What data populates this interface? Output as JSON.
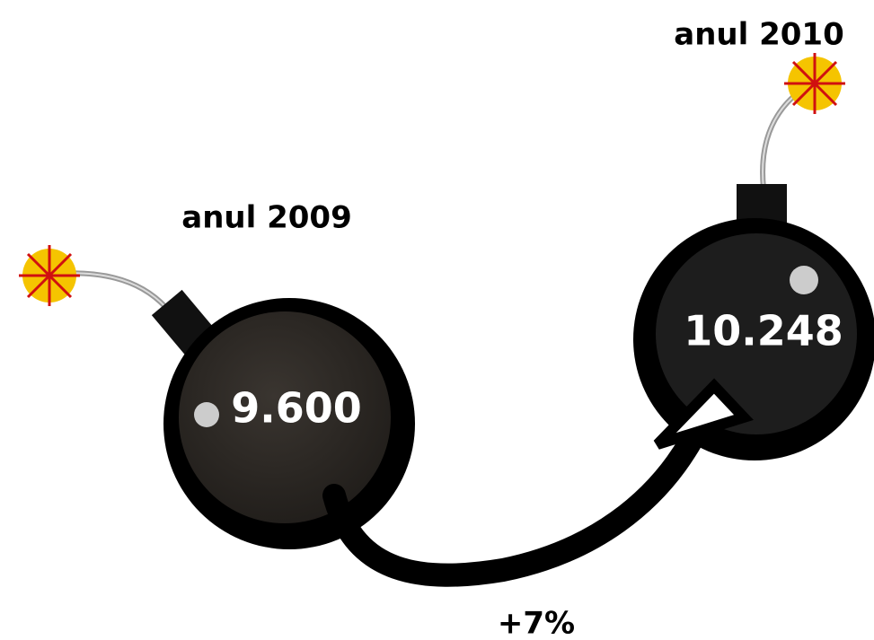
{
  "bombs": [
    {
      "year": "anul 2009",
      "value": "9.600"
    },
    {
      "year": "anul 2010",
      "value": "10.248"
    }
  ],
  "change": "+7%"
}
